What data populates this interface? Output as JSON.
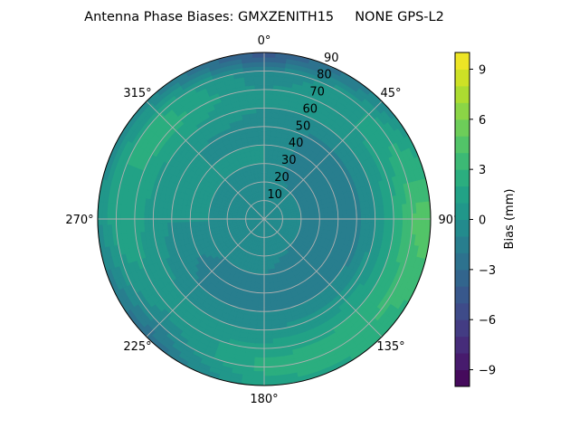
{
  "chart_data": {
    "type": "heatmap",
    "subtype": "polar-filled-contour",
    "title": "Antenna Phase Biases: GMXZENITH15     NONE GPS-L2",
    "colorbar": {
      "label": "Bias (mm)",
      "range": [
        -10,
        10
      ],
      "level_step": 1,
      "ticks": [
        "−9",
        "−6",
        "−3",
        "0",
        "3",
        "6",
        "9"
      ],
      "tick_values": [
        -9,
        -6,
        -3,
        0,
        3,
        6,
        9
      ],
      "colormap": "viridis"
    },
    "angular_axis": {
      "zero_location": "top",
      "direction": "clockwise",
      "tick_labels": [
        "0°",
        "45°",
        "90°",
        "135°",
        "180°",
        "225°",
        "270°",
        "315°"
      ],
      "tick_values": [
        0,
        45,
        90,
        135,
        180,
        225,
        270,
        315
      ]
    },
    "radial_axis": {
      "range": [
        0,
        90
      ],
      "tick_labels": [
        "10",
        "20",
        "30",
        "40",
        "50",
        "60",
        "70",
        "80",
        "90"
      ],
      "tick_values": [
        10,
        20,
        30,
        40,
        50,
        60,
        70,
        80,
        90
      ]
    },
    "grid": true,
    "azimuth": [
      0,
      45,
      90,
      135,
      180,
      225,
      270,
      315
    ],
    "zenith": [
      0,
      10,
      20,
      30,
      40,
      50,
      60,
      70,
      80,
      90
    ],
    "bias": [
      [
        -0.5,
        -0.5,
        -0.5,
        0,
        0,
        -0.5,
        0,
        0,
        -1,
        -5
      ],
      [
        -0.5,
        -0.5,
        -1,
        -2,
        -2,
        -1.5,
        0,
        1,
        1,
        -1
      ],
      [
        -0.5,
        -0.5,
        -1,
        -1.5,
        -2,
        -1.5,
        0,
        2,
        4,
        5
      ],
      [
        -0.5,
        -0.5,
        -1,
        -2,
        -2,
        -1,
        0.5,
        2,
        3,
        2
      ],
      [
        -0.5,
        -0.5,
        -0.5,
        -1,
        -1.5,
        -1,
        0,
        1.5,
        2.5,
        1.5
      ],
      [
        -0.5,
        -0.5,
        -0.5,
        -1,
        -1.5,
        -1,
        0,
        0.5,
        -1,
        -3
      ],
      [
        -0.5,
        -0.5,
        -0.5,
        0,
        0,
        0,
        0.5,
        1.5,
        2,
        0
      ],
      [
        -0.5,
        -0.5,
        -0.5,
        0,
        0,
        0,
        1,
        2.5,
        2,
        -1
      ]
    ]
  }
}
